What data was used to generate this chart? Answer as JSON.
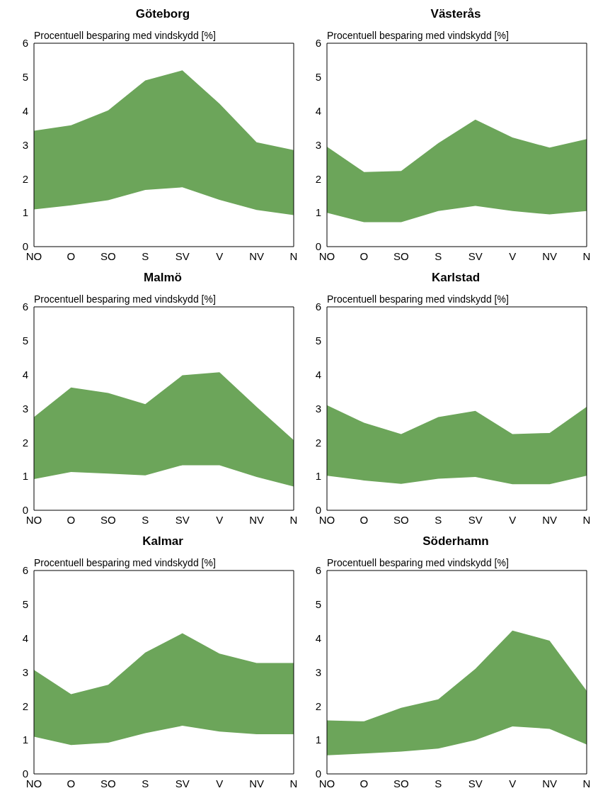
{
  "chart_data": [
    {
      "type": "area",
      "title": "Göteborg",
      "ylabel": "Procentuell besparing med vindskydd [%]",
      "categories": [
        "NO",
        "O",
        "SO",
        "S",
        "SV",
        "V",
        "NV",
        "N"
      ],
      "ylim": [
        0,
        6
      ],
      "yticks": [
        0,
        1,
        2,
        3,
        4,
        5,
        6
      ],
      "grid": false,
      "legend": false,
      "series": [
        {
          "color": "#6ca55a",
          "values": [
            3.42,
            3.58,
            4.02,
            4.9,
            5.2,
            4.22,
            3.08,
            2.85
          ]
        },
        {
          "color": "#ffffff",
          "values": [
            1.1,
            1.22,
            1.37,
            1.67,
            1.75,
            1.38,
            1.08,
            0.93
          ]
        }
      ]
    },
    {
      "type": "area",
      "title": "Västerås",
      "ylabel": "Procentuell besparing med vindskydd [%]",
      "categories": [
        "NO",
        "O",
        "SO",
        "S",
        "SV",
        "V",
        "NV",
        "N"
      ],
      "ylim": [
        0,
        6
      ],
      "yticks": [
        0,
        1,
        2,
        3,
        4,
        5,
        6
      ],
      "grid": false,
      "legend": false,
      "series": [
        {
          "color": "#6ca55a",
          "values": [
            2.95,
            2.2,
            2.23,
            3.05,
            3.75,
            3.22,
            2.92,
            3.17
          ]
        },
        {
          "color": "#ffffff",
          "values": [
            1.0,
            0.72,
            0.72,
            1.05,
            1.2,
            1.05,
            0.95,
            1.05
          ]
        }
      ]
    },
    {
      "type": "area",
      "title": "Malmö",
      "ylabel": "Procentuell besparing med vindskydd [%]",
      "categories": [
        "NO",
        "O",
        "SO",
        "S",
        "SV",
        "V",
        "NV",
        "N"
      ],
      "ylim": [
        0,
        6
      ],
      "yticks": [
        0,
        1,
        2,
        3,
        4,
        5,
        6
      ],
      "grid": false,
      "legend": false,
      "series": [
        {
          "color": "#6ca55a",
          "values": [
            2.75,
            3.62,
            3.46,
            3.13,
            3.98,
            4.07,
            3.05,
            2.07
          ]
        },
        {
          "color": "#ffffff",
          "values": [
            0.92,
            1.13,
            1.08,
            1.03,
            1.33,
            1.33,
            0.98,
            0.7
          ]
        }
      ]
    },
    {
      "type": "area",
      "title": "Karlstad",
      "ylabel": "Procentuell besparing med vindskydd [%]",
      "categories": [
        "NO",
        "O",
        "SO",
        "S",
        "SV",
        "V",
        "NV",
        "N"
      ],
      "ylim": [
        0,
        6
      ],
      "yticks": [
        0,
        1,
        2,
        3,
        4,
        5,
        6
      ],
      "grid": false,
      "legend": false,
      "series": [
        {
          "color": "#6ca55a",
          "values": [
            3.1,
            2.58,
            2.25,
            2.75,
            2.93,
            2.25,
            2.28,
            3.05
          ]
        },
        {
          "color": "#ffffff",
          "values": [
            1.02,
            0.88,
            0.78,
            0.93,
            0.98,
            0.77,
            0.77,
            1.02
          ]
        }
      ]
    },
    {
      "type": "area",
      "title": "Kalmar",
      "ylabel": "Procentuell besparing med vindskydd [%]",
      "categories": [
        "NO",
        "O",
        "SO",
        "S",
        "SV",
        "V",
        "NV",
        "N"
      ],
      "ylim": [
        0,
        6
      ],
      "yticks": [
        0,
        1,
        2,
        3,
        4,
        5,
        6
      ],
      "grid": false,
      "legend": false,
      "series": [
        {
          "color": "#6ca55a",
          "values": [
            3.07,
            2.35,
            2.63,
            3.58,
            4.15,
            3.55,
            3.27,
            3.27
          ]
        },
        {
          "color": "#ffffff",
          "values": [
            1.1,
            0.85,
            0.92,
            1.2,
            1.42,
            1.25,
            1.17,
            1.17
          ]
        }
      ]
    },
    {
      "type": "area",
      "title": "Söderhamn",
      "ylabel": "Procentuell besparing med vindskydd [%]",
      "categories": [
        "NO",
        "O",
        "SO",
        "S",
        "SV",
        "V",
        "NV",
        "N"
      ],
      "ylim": [
        0,
        6
      ],
      "yticks": [
        0,
        1,
        2,
        3,
        4,
        5,
        6
      ],
      "grid": false,
      "legend": false,
      "series": [
        {
          "color": "#6ca55a",
          "values": [
            1.58,
            1.55,
            1.95,
            2.2,
            3.1,
            4.23,
            3.93,
            2.45
          ]
        },
        {
          "color": "#ffffff",
          "values": [
            0.55,
            0.6,
            0.66,
            0.75,
            1.0,
            1.4,
            1.33,
            0.87
          ]
        }
      ]
    }
  ]
}
